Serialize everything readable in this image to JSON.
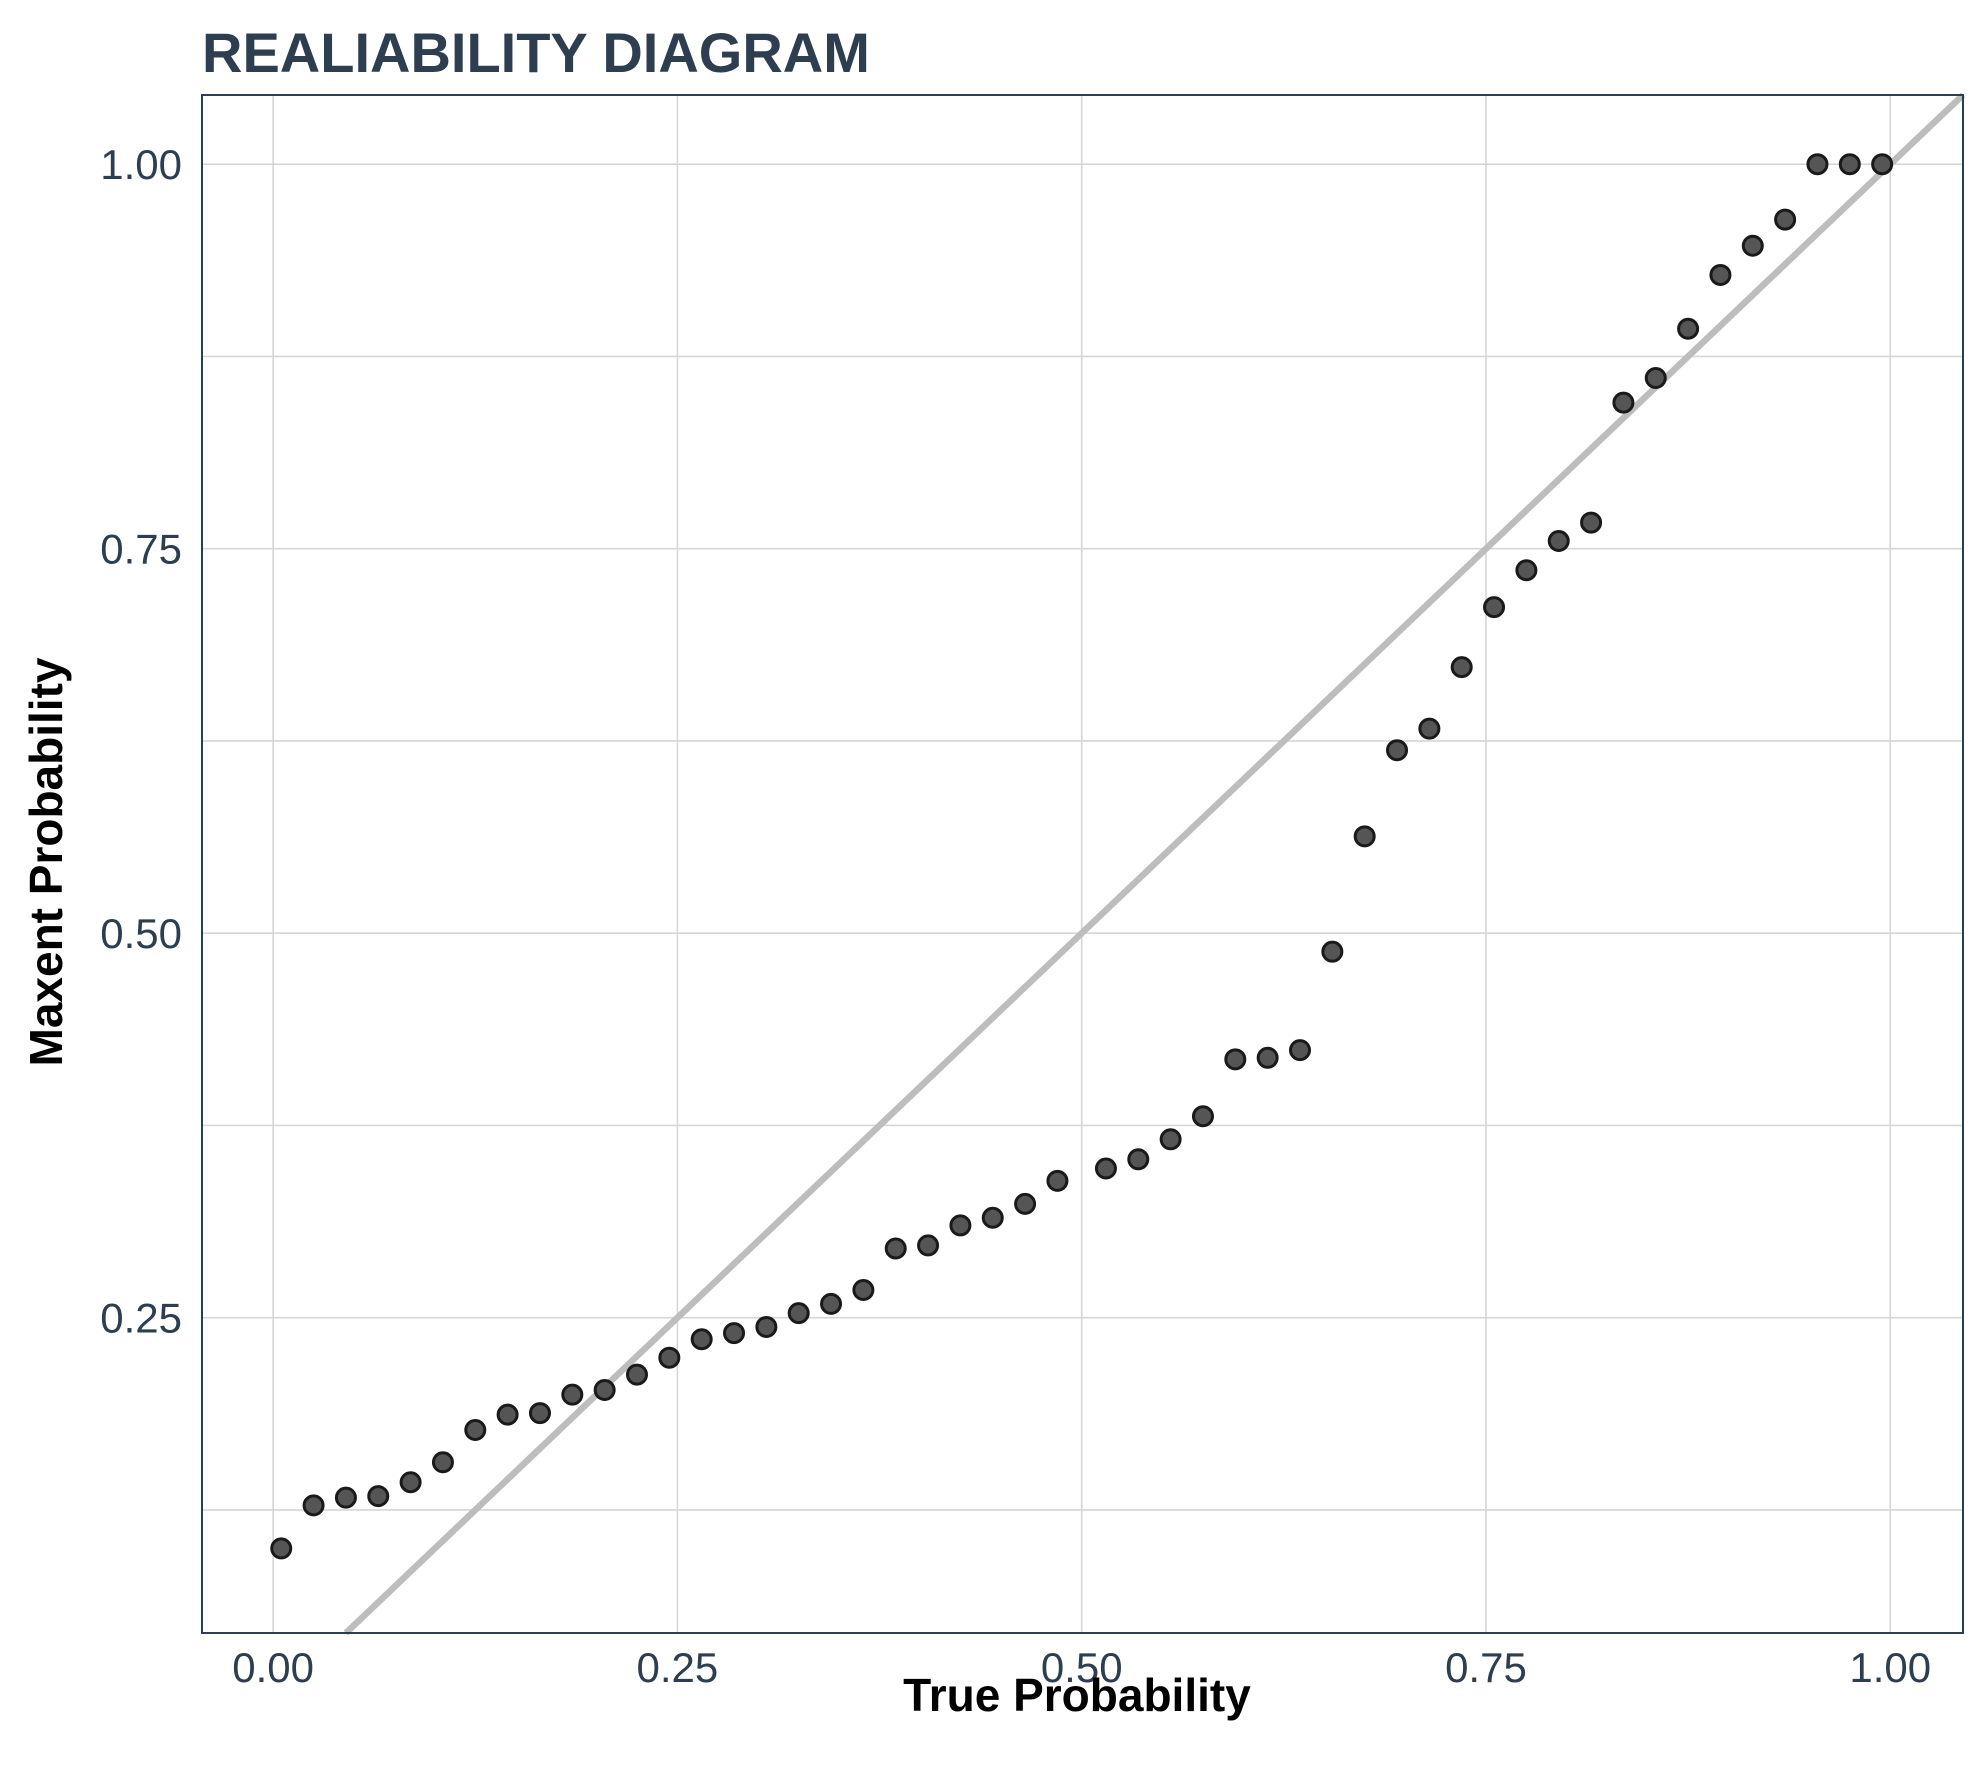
{
  "chart_data": {
    "type": "scatter",
    "title": "REALIABILITY DIAGRAM",
    "xlabel": "True Probability",
    "ylabel": "Maxent Probability",
    "xlim": [
      -0.044,
      1.045
    ],
    "ylim": [
      0.045,
      1.045
    ],
    "x_ticks": [
      0.0,
      0.25,
      0.5,
      0.75,
      1.0
    ],
    "x_tick_labels": [
      "0.00",
      "0.25",
      "0.50",
      "0.75",
      "1.00"
    ],
    "y_ticks": [
      0.25,
      0.5,
      0.75,
      1.0
    ],
    "y_tick_labels": [
      "0.25",
      "0.50",
      "0.75",
      "1.00"
    ],
    "y_minor_ticks": [
      0.125,
      0.375,
      0.625,
      0.875
    ],
    "grid": true,
    "reference_line": {
      "type": "identity",
      "color": "#bdbdbd"
    },
    "point_color": "#555555",
    "points": [
      {
        "x": 0.005,
        "y": 0.1
      },
      {
        "x": 0.025,
        "y": 0.128
      },
      {
        "x": 0.045,
        "y": 0.133
      },
      {
        "x": 0.065,
        "y": 0.134
      },
      {
        "x": 0.085,
        "y": 0.143
      },
      {
        "x": 0.105,
        "y": 0.156
      },
      {
        "x": 0.125,
        "y": 0.177
      },
      {
        "x": 0.145,
        "y": 0.187
      },
      {
        "x": 0.165,
        "y": 0.188
      },
      {
        "x": 0.185,
        "y": 0.2
      },
      {
        "x": 0.205,
        "y": 0.203
      },
      {
        "x": 0.225,
        "y": 0.213
      },
      {
        "x": 0.245,
        "y": 0.224
      },
      {
        "x": 0.265,
        "y": 0.236
      },
      {
        "x": 0.285,
        "y": 0.24
      },
      {
        "x": 0.305,
        "y": 0.244
      },
      {
        "x": 0.325,
        "y": 0.253
      },
      {
        "x": 0.345,
        "y": 0.259
      },
      {
        "x": 0.365,
        "y": 0.268
      },
      {
        "x": 0.385,
        "y": 0.295
      },
      {
        "x": 0.405,
        "y": 0.297
      },
      {
        "x": 0.425,
        "y": 0.31
      },
      {
        "x": 0.445,
        "y": 0.315
      },
      {
        "x": 0.465,
        "y": 0.324
      },
      {
        "x": 0.485,
        "y": 0.339
      },
      {
        "x": 0.515,
        "y": 0.347
      },
      {
        "x": 0.535,
        "y": 0.353
      },
      {
        "x": 0.555,
        "y": 0.366
      },
      {
        "x": 0.575,
        "y": 0.381
      },
      {
        "x": 0.595,
        "y": 0.418
      },
      {
        "x": 0.615,
        "y": 0.419
      },
      {
        "x": 0.635,
        "y": 0.424
      },
      {
        "x": 0.655,
        "y": 0.488
      },
      {
        "x": 0.675,
        "y": 0.563
      },
      {
        "x": 0.695,
        "y": 0.619
      },
      {
        "x": 0.715,
        "y": 0.633
      },
      {
        "x": 0.735,
        "y": 0.673
      },
      {
        "x": 0.755,
        "y": 0.712
      },
      {
        "x": 0.775,
        "y": 0.736
      },
      {
        "x": 0.795,
        "y": 0.755
      },
      {
        "x": 0.815,
        "y": 0.767
      },
      {
        "x": 0.835,
        "y": 0.845
      },
      {
        "x": 0.855,
        "y": 0.861
      },
      {
        "x": 0.875,
        "y": 0.893
      },
      {
        "x": 0.895,
        "y": 0.928
      },
      {
        "x": 0.915,
        "y": 0.947
      },
      {
        "x": 0.935,
        "y": 0.964
      },
      {
        "x": 0.955,
        "y": 1.0
      },
      {
        "x": 0.975,
        "y": 1.0
      },
      {
        "x": 0.995,
        "y": 1.0
      }
    ]
  }
}
